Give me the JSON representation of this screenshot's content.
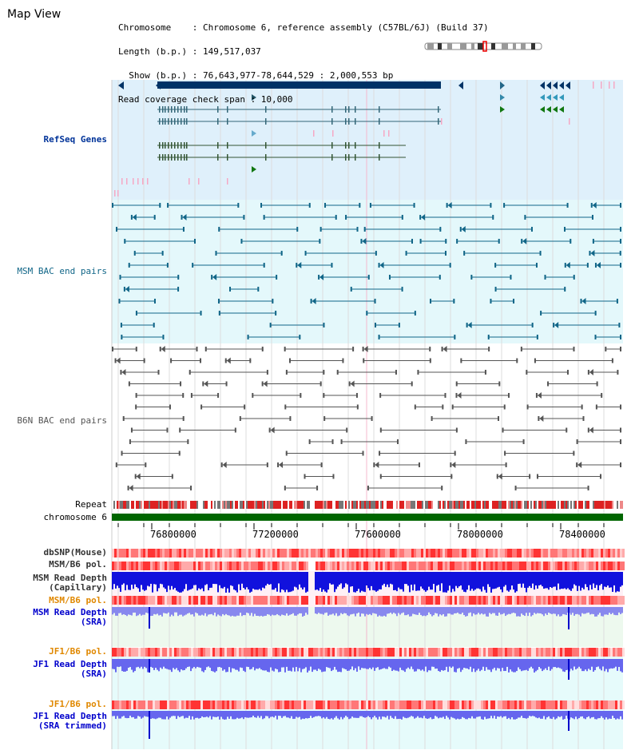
{
  "title": "Map View",
  "info": {
    "line1": "Chromosome    : Chromosome 6, reference assembly (C57BL/6J) (Build 37)",
    "line2": "Length (b.p.) : 149,517,037",
    "line3": "  Show (b.p.) : 76,643,977-78,644,529 : 2,000,553 bp",
    "line4": "Read coverage check span : 10,000"
  },
  "tracks": {
    "refseq": "RefSeq Genes",
    "msm_bac": "MSM BAC end pairs",
    "b6n_bac": "B6N BAC end pairs",
    "repeat": "Repeat",
    "chromosome": "chromosome 6",
    "dbsnp": "dbSNP(Mouse)",
    "msm_b6_pol": "MSM/B6 pol.",
    "msm_read_depth_cap_1": "MSM Read Depth",
    "msm_read_depth_cap_2": "(Capillary)",
    "msm_b6_pol2": "MSM/B6 pol.",
    "msm_read_depth_sra_1": "MSM Read Depth",
    "msm_read_depth_sra_2": "(SRA)",
    "jf1_b6_pol": "JF1/B6 pol.",
    "jf1_read_depth_1": "JF1 Read Depth",
    "jf1_read_depth_2": "(SRA)",
    "jf1_b6_pol2": "JF1/B6 pol.",
    "jf1_read_depth_tr_1": "JF1 Read Depth",
    "jf1_read_depth_tr_2": "(SRA trimmed)"
  },
  "axis": {
    "ticks": [
      "76800000",
      "77200000",
      "77600000",
      "78000000",
      "78400000"
    ]
  },
  "colors": {
    "refseq_bg": "#dff0fb",
    "msm_bg": "#e4f8fb",
    "refseq_gene": "#003366",
    "refseq_green": "#004400",
    "msm_pair": "#116688",
    "b6n_pair": "#555555",
    "chrom_bar": "#006600",
    "snp_red": "#ff5555",
    "depth_blue": "#0000cc",
    "depth_light": "#6666ff",
    "label_orange": "#e08800",
    "label_blue": "#0000cc"
  }
}
